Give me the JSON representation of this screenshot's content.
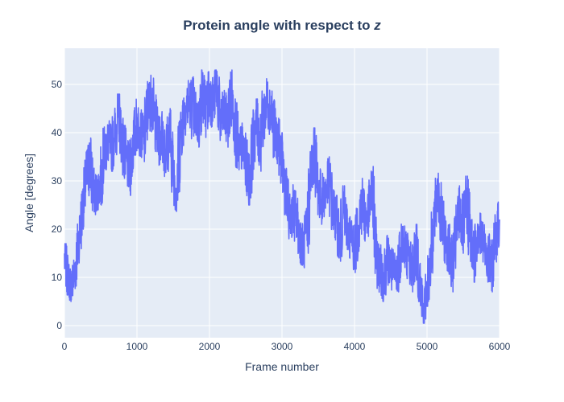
{
  "chart_data": {
    "type": "line",
    "title_main": "Protein angle with respect to ",
    "title_italic": "z",
    "xlabel": "Frame number",
    "ylabel": "Angle [degrees]",
    "xlim": [
      0,
      6000
    ],
    "ylim": [
      -2.5,
      57.5
    ],
    "xticks": [
      0,
      1000,
      2000,
      3000,
      4000,
      5000,
      6000
    ],
    "yticks": [
      0,
      10,
      20,
      30,
      40,
      50
    ],
    "grid": true,
    "colors": {
      "plot_bg": "#e5ecf6",
      "grid": "#ffffff",
      "line": "#636efa",
      "text": "#2a3f5f"
    },
    "series": [
      {
        "x": [
          0,
          50,
          100,
          150,
          200,
          250,
          300,
          350,
          400,
          450,
          500,
          550,
          600,
          650,
          700,
          750,
          800,
          850,
          900,
          950,
          1000,
          1050,
          1100,
          1150,
          1200,
          1250,
          1300,
          1350,
          1400,
          1450,
          1500,
          1550,
          1600,
          1650,
          1700,
          1750,
          1800,
          1850,
          1900,
          1950,
          2000,
          2050,
          2100,
          2150,
          2200,
          2250,
          2300,
          2350,
          2400,
          2450,
          2500,
          2550,
          2600,
          2650,
          2700,
          2750,
          2800,
          2850,
          2900,
          2950,
          3000,
          3050,
          3100,
          3150,
          3200,
          3250,
          3300,
          3350,
          3400,
          3450,
          3500,
          3550,
          3600,
          3650,
          3700,
          3750,
          3800,
          3850,
          3900,
          3950,
          4000,
          4050,
          4100,
          4150,
          4200,
          4250,
          4300,
          4350,
          4400,
          4450,
          4500,
          4550,
          4600,
          4650,
          4700,
          4750,
          4800,
          4850,
          4900,
          4950,
          5000,
          5050,
          5100,
          5150,
          5200,
          5250,
          5300,
          5350,
          5400,
          5450,
          5500,
          5550,
          5600,
          5650,
          5700,
          5750,
          5800,
          5850,
          5900,
          5950,
          6000
        ],
        "y": [
          14,
          10,
          8,
          12,
          18,
          24,
          30,
          34,
          28,
          27,
          30,
          36,
          38,
          37,
          40,
          44,
          38,
          34,
          32,
          38,
          42,
          40,
          39,
          45,
          47,
          43,
          38,
          40,
          36,
          40,
          32,
          28,
          40,
          44,
          46,
          46,
          44,
          42,
          48,
          45,
          48,
          46,
          50,
          42,
          44,
          42,
          48,
          42,
          36,
          37,
          34,
          30,
          38,
          42,
          38,
          44,
          46,
          45,
          40,
          38,
          34,
          28,
          22,
          24,
          22,
          18,
          16,
          20,
          32,
          36,
          28,
          26,
          28,
          30,
          24,
          22,
          18,
          24,
          20,
          18,
          16,
          20,
          26,
          22,
          24,
          28,
          14,
          12,
          10,
          14,
          12,
          10,
          12,
          18,
          16,
          14,
          12,
          16,
          10,
          2,
          8,
          14,
          22,
          28,
          22,
          18,
          16,
          12,
          18,
          24,
          20,
          26,
          18,
          14,
          20,
          18,
          16,
          14,
          12,
          18,
          22
        ],
        "raw_min": [
          11,
          6,
          5,
          8,
          13,
          20,
          25,
          28,
          23,
          24,
          25,
          31,
          33,
          32,
          34,
          38,
          33,
          28,
          27,
          33,
          37,
          35,
          34,
          39,
          41,
          37,
          33,
          34,
          30,
          35,
          27,
          23,
          34,
          39,
          41,
          41,
          38,
          37,
          43,
          39,
          42,
          41,
          44,
          37,
          38,
          37,
          42,
          36,
          30,
          31,
          29,
          25,
          32,
          37,
          32,
          38,
          41,
          39,
          34,
          33,
          29,
          23,
          18,
          19,
          17,
          14,
          12,
          15,
          26,
          31,
          23,
          21,
          23,
          25,
          19,
          17,
          13,
          19,
          15,
          14,
          11,
          15,
          20,
          17,
          19,
          22,
          9,
          6,
          5,
          9,
          7,
          5,
          7,
          13,
          11,
          9,
          7,
          11,
          5,
          0.5,
          4,
          9,
          17,
          23,
          16,
          13,
          11,
          7,
          13,
          19,
          15,
          20,
          12,
          9,
          15,
          13,
          11,
          9,
          7,
          13,
          17
        ],
        "raw_max": [
          17,
          14,
          12,
          16,
          22,
          28,
          35,
          40,
          34,
          31,
          35,
          41,
          43,
          42,
          46,
          48,
          43,
          39,
          37,
          43,
          47,
          45,
          44,
          51,
          52,
          48,
          43,
          45,
          42,
          45,
          37,
          33,
          45,
          49,
          51,
          54,
          49,
          47,
          53,
          50,
          54,
          51,
          53,
          48,
          49,
          47,
          53,
          47,
          42,
          42,
          39,
          35,
          43,
          47,
          43,
          49,
          52,
          50,
          45,
          43,
          40,
          33,
          27,
          30,
          28,
          23,
          21,
          26,
          38,
          41,
          34,
          31,
          33,
          35,
          29,
          27,
          23,
          29,
          25,
          23,
          21,
          25,
          31,
          27,
          29,
          33,
          19,
          17,
          15,
          19,
          17,
          15,
          17,
          23,
          21,
          19,
          17,
          21,
          15,
          7,
          12,
          19,
          27,
          32,
          27,
          23,
          21,
          17,
          23,
          29,
          25,
          31,
          23,
          19,
          25,
          23,
          21,
          19,
          17,
          23,
          26
        ]
      }
    ]
  }
}
